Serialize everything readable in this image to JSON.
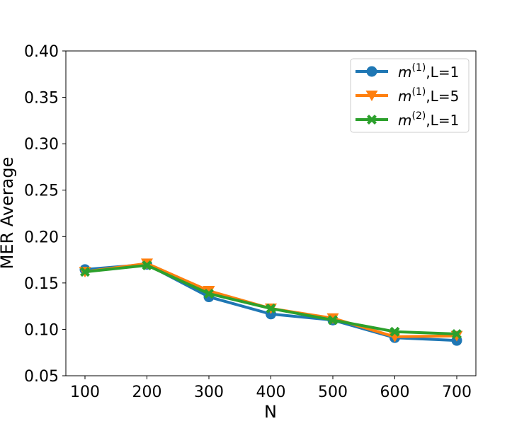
{
  "chart_data": {
    "type": "line",
    "title": "",
    "xlabel": "N",
    "ylabel": "MER Average",
    "x": [
      100,
      200,
      300,
      400,
      500,
      600,
      700
    ],
    "xlim": [
      70,
      730
    ],
    "ylim": [
      0.05,
      0.4
    ],
    "xticks": [
      100,
      200,
      300,
      400,
      500,
      600,
      700
    ],
    "yticks": [
      0.05,
      0.1,
      0.15,
      0.2,
      0.25,
      0.3,
      0.35,
      0.4
    ],
    "ytick_labels": [
      "0.05",
      "0.10",
      "0.15",
      "0.20",
      "0.25",
      "0.30",
      "0.35",
      "0.40"
    ],
    "grid": false,
    "legend_position": "top-right",
    "series": [
      {
        "name": "m(1),L=1",
        "label_base": "m",
        "label_sup": "(1)",
        "label_rest": ",L=1",
        "color": "#1f77b4",
        "marker": "circle",
        "values": [
          0.1645,
          0.17,
          0.135,
          0.1165,
          0.11,
          0.091,
          0.088
        ]
      },
      {
        "name": "m(1),L=5",
        "label_base": "m",
        "label_sup": "(1)",
        "label_rest": ",L=5",
        "color": "#ff7f0e",
        "marker": "triangle-down",
        "values": [
          0.162,
          0.171,
          0.1415,
          0.1225,
          0.112,
          0.092,
          0.093
        ]
      },
      {
        "name": "m(2),L=1",
        "label_base": "m",
        "label_sup": "(2)",
        "label_rest": ",L=1",
        "color": "#2ca02c",
        "marker": "x-filled",
        "values": [
          0.162,
          0.169,
          0.1385,
          0.1225,
          0.11,
          0.0975,
          0.095
        ]
      }
    ]
  }
}
